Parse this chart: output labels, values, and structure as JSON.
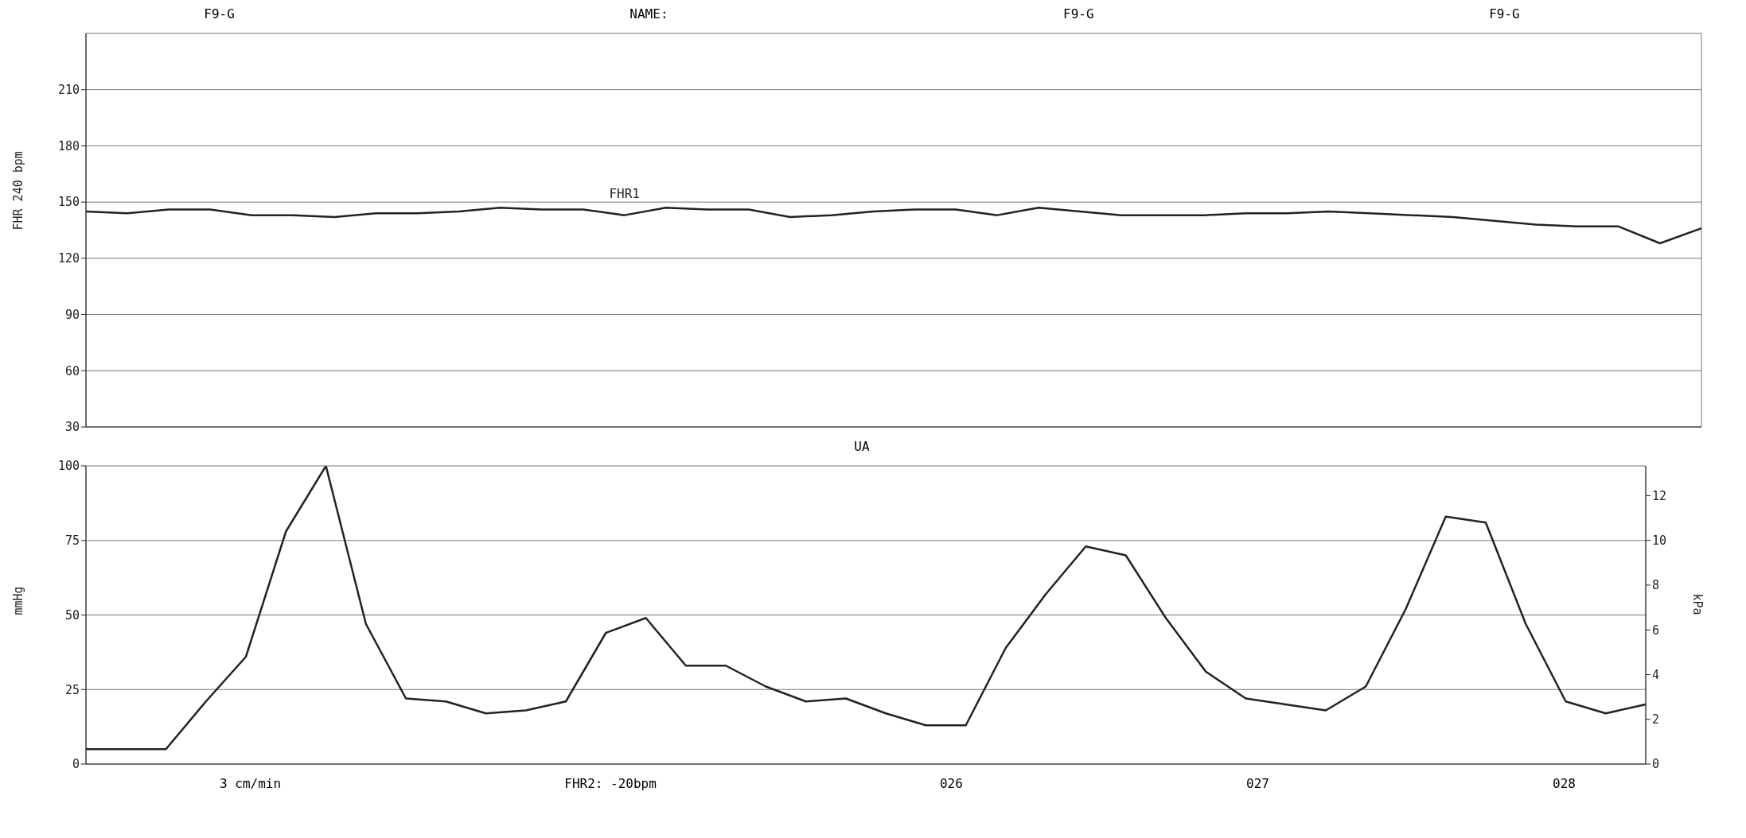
{
  "chart_data": [
    {
      "type": "line",
      "title": "F9-G",
      "ylabel": "FHR 240 bpm",
      "annotations": [
        "NAME:",
        "F9-G",
        "F9-G"
      ],
      "categories": [
        null,
        null,
        null,
        null,
        null,
        null,
        null,
        null,
        null,
        null,
        null,
        null,
        null,
        null,
        null,
        null,
        null,
        null,
        null,
        null,
        null,
        null,
        null,
        null,
        null,
        null,
        null,
        null,
        null,
        null,
        null,
        null,
        null,
        null,
        null,
        null,
        null,
        null,
        null,
        null
      ],
      "series": [
        {
          "name": "FHR1",
          "color": "#222222",
          "values": [
            145,
            144,
            146,
            146,
            143,
            143,
            142,
            144,
            144,
            145,
            147,
            146,
            146,
            143,
            147,
            146,
            146,
            142,
            143,
            145,
            146,
            146,
            143,
            147,
            145,
            143,
            143,
            143,
            144,
            144,
            145,
            144,
            143,
            142,
            140,
            138,
            137,
            137,
            128,
            136
          ]
        }
      ],
      "ylim": [
        30,
        240
      ],
      "yticks": [
        30,
        60,
        90,
        120,
        150,
        180,
        210
      ],
      "grid": true,
      "legend": false,
      "marker": "none",
      "line_style": "solid",
      "tick_labels": "y"
    },
    {
      "type": "line",
      "title": "UA",
      "ylabel": "mmHg",
      "y2label": "kPa",
      "annotations": [
        "3 cm/min",
        "FHR2: -20bpm",
        "026",
        "027",
        "028"
      ],
      "categories": [
        null,
        null,
        null,
        null,
        null,
        null,
        null,
        null,
        null,
        null,
        null,
        null,
        null,
        null,
        null,
        null,
        null,
        null,
        null,
        null,
        null,
        null,
        null,
        null,
        null,
        null,
        null,
        null,
        null,
        null,
        null,
        null,
        null,
        null,
        null,
        null,
        null,
        null,
        null,
        null
      ],
      "series": [
        {
          "color": "#222222",
          "values": [
            5,
            5,
            5,
            21,
            36,
            78,
            100,
            47,
            22,
            21,
            17,
            18,
            21,
            44,
            49,
            33,
            33,
            26,
            21,
            22,
            17,
            13,
            13,
            39,
            57,
            73,
            70,
            49,
            31,
            22,
            20,
            18,
            26,
            52,
            83,
            81,
            47,
            21,
            17,
            20
          ]
        }
      ],
      "ylim": [
        0,
        100
      ],
      "yticks": [
        0,
        25,
        50,
        75,
        100
      ],
      "y2lim": [
        0,
        13.33
      ],
      "y2ticks": [
        0,
        2,
        4,
        6,
        8,
        10,
        12
      ],
      "grid": true,
      "legend": false,
      "marker": "none",
      "line_style": "solid",
      "tick_labels": "y"
    }
  ]
}
